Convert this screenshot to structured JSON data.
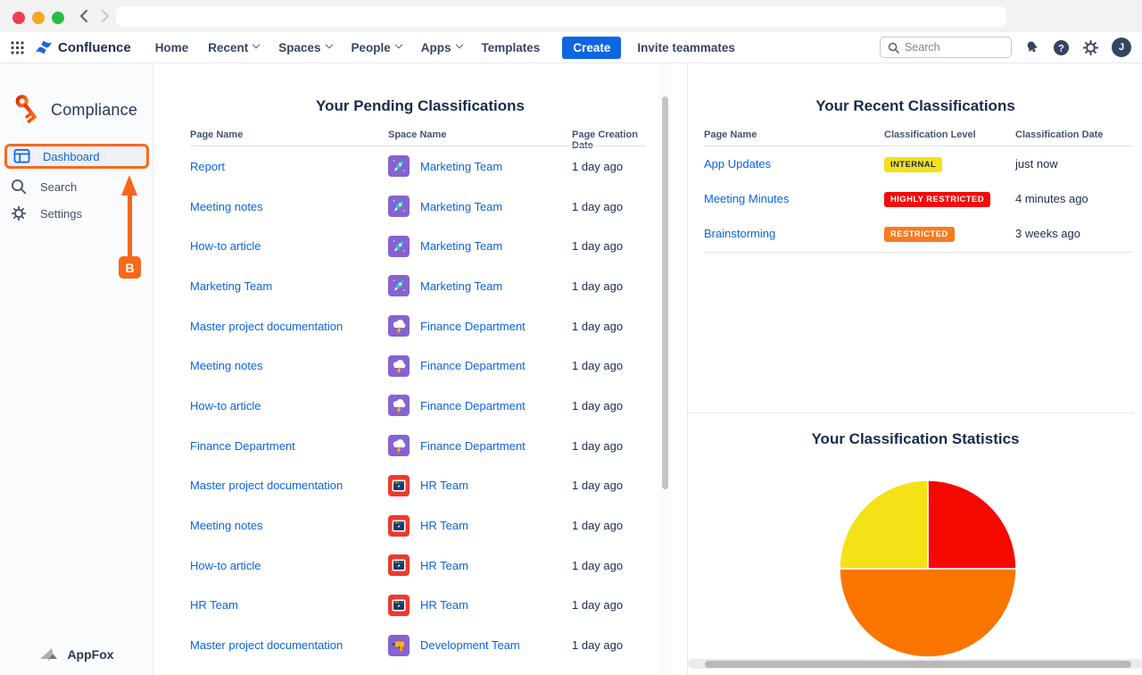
{
  "browser": {
    "url_value": ""
  },
  "navbar": {
    "brand": "Confluence",
    "menu": [
      {
        "label": "Home",
        "caret": false
      },
      {
        "label": "Recent",
        "caret": true
      },
      {
        "label": "Spaces",
        "caret": true
      },
      {
        "label": "People",
        "caret": true
      },
      {
        "label": "Apps",
        "caret": true
      },
      {
        "label": "Templates",
        "caret": false
      }
    ],
    "create_label": "Create",
    "invite_label": "Invite teammates",
    "search_placeholder": "Search",
    "avatar_initial": "J"
  },
  "sidebar": {
    "app_title": "Compliance",
    "items": [
      {
        "label": "Dashboard",
        "active": true
      },
      {
        "label": "Search",
        "active": false
      },
      {
        "label": "Settings",
        "active": false
      }
    ],
    "annotation_label": "B",
    "footer_brand": "AppFox"
  },
  "pending": {
    "title": "Your Pending Classifications",
    "columns": [
      "Page Name",
      "Space Name",
      "Page Creation Date"
    ],
    "rows": [
      {
        "page": "Report",
        "space": "Marketing Team",
        "space_icon": "rocket-icon",
        "date": "1 day ago"
      },
      {
        "page": "Meeting notes",
        "space": "Marketing Team",
        "space_icon": "rocket-icon",
        "date": "1 day ago"
      },
      {
        "page": "How-to article",
        "space": "Marketing Team",
        "space_icon": "rocket-icon",
        "date": "1 day ago"
      },
      {
        "page": "Marketing Team",
        "space": "Marketing Team",
        "space_icon": "rocket-icon",
        "date": "1 day ago"
      },
      {
        "page": "Master project documentation",
        "space": "Finance Department",
        "space_icon": "storm-icon",
        "date": "1 day ago"
      },
      {
        "page": "Meeting notes",
        "space": "Finance Department",
        "space_icon": "storm-icon",
        "date": "1 day ago"
      },
      {
        "page": "How-to article",
        "space": "Finance Department",
        "space_icon": "storm-icon",
        "date": "1 day ago"
      },
      {
        "page": "Finance Department",
        "space": "Finance Department",
        "space_icon": "storm-icon",
        "date": "1 day ago"
      },
      {
        "page": "Master project documentation",
        "space": "HR Team",
        "space_icon": "window-icon",
        "date": "1 day ago"
      },
      {
        "page": "Meeting notes",
        "space": "HR Team",
        "space_icon": "window-icon",
        "date": "1 day ago"
      },
      {
        "page": "How-to article",
        "space": "HR Team",
        "space_icon": "window-icon",
        "date": "1 day ago"
      },
      {
        "page": "HR Team",
        "space": "HR Team",
        "space_icon": "window-icon",
        "date": "1 day ago"
      },
      {
        "page": "Master project documentation",
        "space": "Development Team",
        "space_icon": "drill-icon",
        "date": "1 day ago"
      }
    ]
  },
  "recent": {
    "title": "Your Recent Classifications",
    "columns": [
      "Page Name",
      "Classification Level",
      "Classification Date"
    ],
    "rows": [
      {
        "page": "App Updates",
        "level": "INTERNAL",
        "badge_bg": "#F7E018",
        "badge_fg": "#172B4D",
        "date": "just now"
      },
      {
        "page": "Meeting Minutes",
        "level": "HIGHLY RESTRICTED",
        "badge_bg": "#F40B0B",
        "badge_fg": "#FFFFFF",
        "date": "4 minutes ago"
      },
      {
        "page": "Brainstorming",
        "level": "RESTRICTED",
        "badge_bg": "#FB7A1E",
        "badge_fg": "#FFFFFF",
        "date": "3 weeks ago"
      }
    ]
  },
  "chart_data": {
    "type": "pie",
    "title": "Your Classification Statistics",
    "slices": [
      {
        "label": "HIGHLY RESTRICTED",
        "value": 25,
        "color": "#F50800"
      },
      {
        "label": "RESTRICTED",
        "value": 50,
        "color": "#FA7500"
      },
      {
        "label": "INTERNAL",
        "value": 25,
        "color": "#F4E216"
      }
    ],
    "start_angle_deg": 0,
    "legend": false
  },
  "colors": {
    "accent_blue": "#0C66E4",
    "link_blue": "#0B63E5",
    "annotation_orange": "#F8681C",
    "space_purple": "#8762D2",
    "space_red": "#ED3A2E"
  }
}
